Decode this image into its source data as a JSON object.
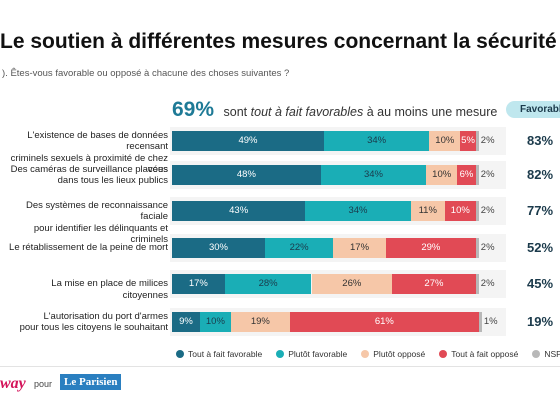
{
  "header": {
    "title": "Le soutien à différentes mesures concernant la sécurité",
    "question": "). Êtes-vous favorable ou opposé à chacune des choses suivantes ?",
    "headline_pct": "69%",
    "headline_pre": "sont",
    "headline_mid": "tout à fait favorables",
    "headline_post": "à au moins une mesure",
    "favorable_label": "Favorable"
  },
  "colors": {
    "tout_fait_favorable": "#1b6b85",
    "plutot_favorable": "#1aaeb6",
    "plutot_oppose": "#f6c7a8",
    "tout_fait_oppose": "#e14a55",
    "nsp": "#b8b8b8"
  },
  "chart_data": {
    "type": "bar",
    "stacked": true,
    "orientation": "horizontal",
    "categories": [
      [
        "L'existence de bases de données recensant",
        "criminels sexuels à proximité de chez vous"
      ],
      [
        "Des caméras de surveillance placées",
        "dans tous les lieux publics"
      ],
      [
        "Des systèmes de reconnaissance faciale",
        "pour identifier les délinquants et criminels"
      ],
      [
        "Le rétablissement de la peine de mort"
      ],
      [
        "La mise en place de milices citoyennes"
      ],
      [
        "L'autorisation du port d'armes",
        "pour tous les citoyens le souhaitant"
      ]
    ],
    "series": [
      {
        "name": "Tout à fait favorable",
        "values": [
          49,
          48,
          43,
          30,
          17,
          9
        ]
      },
      {
        "name": "Plutôt favorable",
        "values": [
          34,
          34,
          34,
          22,
          28,
          10
        ]
      },
      {
        "name": "Plutôt opposé",
        "values": [
          10,
          10,
          11,
          17,
          26,
          19
        ]
      },
      {
        "name": "Tout à fait opposé",
        "values": [
          5,
          6,
          10,
          29,
          27,
          61
        ]
      },
      {
        "name": "NSP",
        "values": [
          2,
          2,
          2,
          2,
          2,
          1
        ]
      }
    ],
    "favorable_totals": [
      "83%",
      "82%",
      "77%",
      "52%",
      "45%",
      "19%"
    ],
    "xlim": [
      0,
      100
    ],
    "legend": "bottom"
  },
  "footer": {
    "brand_left": "way",
    "pour": "pour",
    "brand_right": "Le Parisien"
  }
}
